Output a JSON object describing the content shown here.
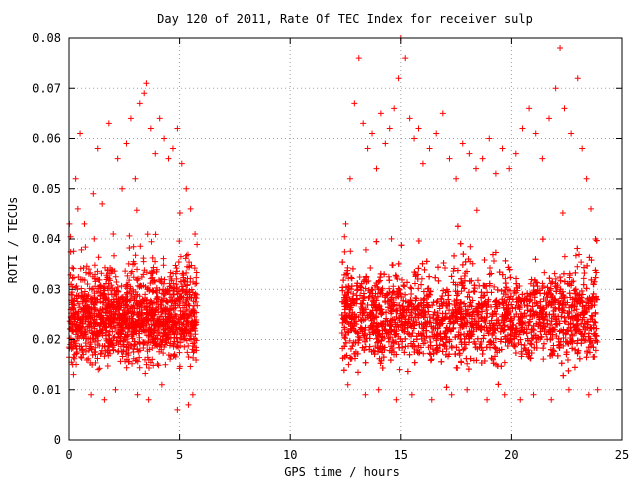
{
  "chart_data": {
    "type": "scatter",
    "title": "Day 120 of 2011, Rate Of TEC Index for receiver sulp",
    "xlabel": "GPS time / hours",
    "ylabel": "ROTI / TECUs",
    "xlim": [
      0,
      25
    ],
    "ylim": [
      0,
      0.08
    ],
    "x_ticks": [
      "0",
      "5",
      "10",
      "15",
      "20",
      "25"
    ],
    "y_ticks": [
      "0",
      "0.01",
      "0.02",
      "0.03",
      "0.04",
      "0.05",
      "0.06",
      "0.07",
      "0.08"
    ],
    "grid": true,
    "marker": "plus",
    "color": "#ff0000",
    "segments": [
      {
        "x_start": 0.0,
        "x_end": 5.8
      },
      {
        "x_start": 12.3,
        "x_end": 23.9
      }
    ],
    "series": [
      {
        "points": [
          [
            0.1,
            0.031
          ],
          [
            0.3,
            0.052
          ],
          [
            0.4,
            0.046
          ],
          [
            0.5,
            0.061
          ],
          [
            0.7,
            0.043
          ],
          [
            0.9,
            0.034
          ],
          [
            1.1,
            0.049
          ],
          [
            1.3,
            0.058
          ],
          [
            1.5,
            0.047
          ],
          [
            1.8,
            0.063
          ],
          [
            2.0,
            0.041
          ],
          [
            2.2,
            0.056
          ],
          [
            2.4,
            0.05
          ],
          [
            2.6,
            0.059
          ],
          [
            2.8,
            0.064
          ],
          [
            3.0,
            0.052
          ],
          [
            3.2,
            0.067
          ],
          [
            3.4,
            0.069
          ],
          [
            3.5,
            0.071
          ],
          [
            3.7,
            0.062
          ],
          [
            3.9,
            0.057
          ],
          [
            4.1,
            0.064
          ],
          [
            4.3,
            0.06
          ],
          [
            4.5,
            0.056
          ],
          [
            4.7,
            0.058
          ],
          [
            4.9,
            0.062
          ],
          [
            5.1,
            0.055
          ],
          [
            5.3,
            0.05
          ],
          [
            5.5,
            0.046
          ],
          [
            5.7,
            0.041
          ],
          [
            12.5,
            0.043
          ],
          [
            12.7,
            0.052
          ],
          [
            12.9,
            0.067
          ],
          [
            13.1,
            0.076
          ],
          [
            13.3,
            0.063
          ],
          [
            13.5,
            0.058
          ],
          [
            13.7,
            0.061
          ],
          [
            13.9,
            0.054
          ],
          [
            14.1,
            0.065
          ],
          [
            14.3,
            0.059
          ],
          [
            14.5,
            0.062
          ],
          [
            14.7,
            0.066
          ],
          [
            14.9,
            0.072
          ],
          [
            15.0,
            0.08
          ],
          [
            15.2,
            0.076
          ],
          [
            15.4,
            0.064
          ],
          [
            15.6,
            0.06
          ],
          [
            15.8,
            0.062
          ],
          [
            16.0,
            0.055
          ],
          [
            16.3,
            0.058
          ],
          [
            16.6,
            0.061
          ],
          [
            16.9,
            0.065
          ],
          [
            17.2,
            0.056
          ],
          [
            17.5,
            0.052
          ],
          [
            17.8,
            0.059
          ],
          [
            18.1,
            0.057
          ],
          [
            18.4,
            0.054
          ],
          [
            18.7,
            0.056
          ],
          [
            19.0,
            0.06
          ],
          [
            19.3,
            0.053
          ],
          [
            19.6,
            0.058
          ],
          [
            19.9,
            0.054
          ],
          [
            20.2,
            0.057
          ],
          [
            20.5,
            0.062
          ],
          [
            20.8,
            0.066
          ],
          [
            21.1,
            0.061
          ],
          [
            21.4,
            0.056
          ],
          [
            21.7,
            0.064
          ],
          [
            22.0,
            0.07
          ],
          [
            22.2,
            0.078
          ],
          [
            22.4,
            0.066
          ],
          [
            22.7,
            0.061
          ],
          [
            23.0,
            0.072
          ],
          [
            23.2,
            0.058
          ],
          [
            23.4,
            0.052
          ],
          [
            23.6,
            0.046
          ],
          [
            23.8,
            0.04
          ],
          [
            0.2,
            0.013
          ],
          [
            1.0,
            0.009
          ],
          [
            1.6,
            0.008
          ],
          [
            2.1,
            0.01
          ],
          [
            3.1,
            0.009
          ],
          [
            3.6,
            0.008
          ],
          [
            4.2,
            0.011
          ],
          [
            4.9,
            0.006
          ],
          [
            5.4,
            0.007
          ],
          [
            5.6,
            0.009
          ],
          [
            12.6,
            0.011
          ],
          [
            13.4,
            0.009
          ],
          [
            14.0,
            0.01
          ],
          [
            14.8,
            0.008
          ],
          [
            15.5,
            0.009
          ],
          [
            16.4,
            0.008
          ],
          [
            17.3,
            0.009
          ],
          [
            18.0,
            0.01
          ],
          [
            18.9,
            0.008
          ],
          [
            19.7,
            0.009
          ],
          [
            20.4,
            0.008
          ],
          [
            21.0,
            0.009
          ],
          [
            21.8,
            0.008
          ],
          [
            22.6,
            0.01
          ],
          [
            23.5,
            0.009
          ],
          [
            23.9,
            0.01
          ]
        ]
      }
    ]
  }
}
